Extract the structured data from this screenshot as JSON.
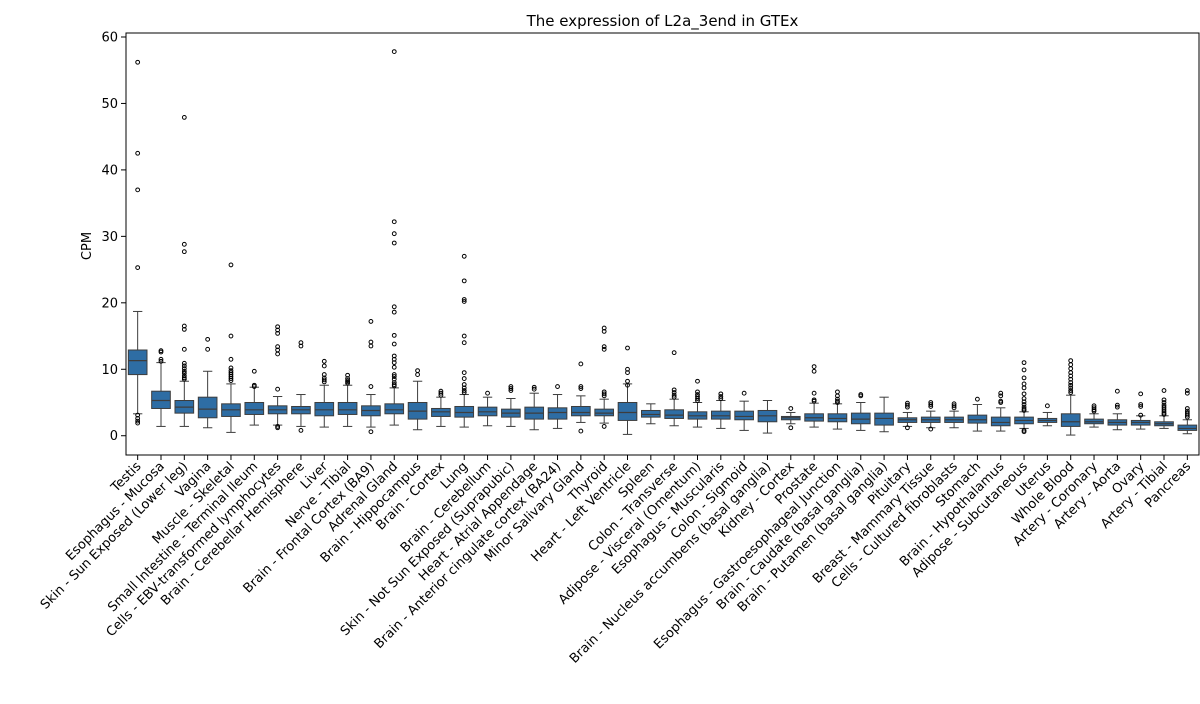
{
  "chart_data": {
    "type": "box",
    "title": "The expression of L2a_3end in GTEx",
    "xlabel": "",
    "ylabel": "CPM",
    "ylim": [
      -2.9,
      60.6
    ],
    "yticks": [
      0,
      10,
      20,
      30,
      40,
      50,
      60
    ],
    "grid": false,
    "legend": "none",
    "box_color": "#2e6da4",
    "categories": [
      "Testis",
      "Esophagus - Mucosa",
      "Skin - Sun Exposed (Lower leg)",
      "Vagina",
      "Muscle - Skeletal",
      "Small Intestine - Terminal Ileum",
      "Cells - EBV-transformed lymphocytes",
      "Brain - Cerebellar Hemisphere",
      "Liver",
      "Nerve - Tibial",
      "Brain - Frontal Cortex (BA9)",
      "Adrenal Gland",
      "Brain - Hippocampus",
      "Brain - Cortex",
      "Lung",
      "Brain - Cerebellum",
      "Skin - Not Sun Exposed (Suprapubic)",
      "Heart - Atrial Appendage",
      "Brain - Anterior cingulate cortex (BA24)",
      "Minor Salivary Gland",
      "Thyroid",
      "Heart - Left Ventricle",
      "Spleen",
      "Colon - Transverse",
      "Adipose - Visceral (Omentum)",
      "Esophagus - Muscularis",
      "Colon - Sigmoid",
      "Brain - Nucleus accumbens (basal ganglia)",
      "Kidney - Cortex",
      "Prostate",
      "Esophagus - Gastroesophageal Junction",
      "Brain - Caudate (basal ganglia)",
      "Brain - Putamen (basal ganglia)",
      "Pituitary",
      "Breast - Mammary Tissue",
      "Cells - Cultured fibroblasts",
      "Stomach",
      "Brain - Hypothalamus",
      "Adipose - Subcutaneous",
      "Uterus",
      "Whole Blood",
      "Artery - Coronary",
      "Artery - Aorta",
      "Ovary",
      "Artery - Tibial",
      "Pancreas"
    ],
    "boxes": [
      {
        "whislo": 3.3,
        "q1": 9.2,
        "med": 11.3,
        "q3": 12.9,
        "whishi": 18.7,
        "fliers": [
          56.2,
          42.5,
          37.0,
          25.3,
          3.1,
          2.6,
          2.2,
          1.9
        ]
      },
      {
        "whislo": 1.4,
        "q1": 4.1,
        "med": 5.3,
        "q3": 6.7,
        "whishi": 11.0,
        "fliers": [
          12.8,
          12.6,
          11.5,
          11.2
        ]
      },
      {
        "whislo": 1.4,
        "q1": 3.4,
        "med": 4.3,
        "q3": 5.3,
        "whishi": 8.2,
        "fliers": [
          47.9,
          28.8,
          27.7,
          16.5,
          16.0,
          13.0,
          10.9,
          10.5,
          10.1,
          9.7,
          9.4,
          9.0,
          8.7,
          8.5
        ]
      },
      {
        "whislo": 1.2,
        "q1": 2.7,
        "med": 4.0,
        "q3": 5.8,
        "whishi": 9.7,
        "fliers": [
          14.5,
          13.0
        ]
      },
      {
        "whislo": 0.5,
        "q1": 2.9,
        "med": 3.9,
        "q3": 4.8,
        "whishi": 7.8,
        "fliers": [
          25.7,
          15.0,
          11.5,
          10.2,
          9.8,
          9.5,
          9.2,
          8.9,
          8.6,
          8.3
        ]
      },
      {
        "whislo": 1.6,
        "q1": 3.2,
        "med": 3.9,
        "q3": 5.0,
        "whishi": 7.3,
        "fliers": [
          9.7,
          7.6,
          7.4
        ]
      },
      {
        "whislo": 1.6,
        "q1": 3.3,
        "med": 3.9,
        "q3": 4.5,
        "whishi": 5.9,
        "fliers": [
          16.4,
          15.9,
          15.4,
          13.4,
          12.9,
          12.3,
          7.0,
          1.4,
          1.2
        ]
      },
      {
        "whislo": 1.4,
        "q1": 3.3,
        "med": 3.9,
        "q3": 4.4,
        "whishi": 6.2,
        "fliers": [
          14.0,
          13.5,
          0.8
        ]
      },
      {
        "whislo": 1.3,
        "q1": 3.0,
        "med": 3.9,
        "q3": 5.0,
        "whishi": 7.6,
        "fliers": [
          11.2,
          10.5,
          9.2,
          8.7,
          8.4,
          8.1
        ]
      },
      {
        "whislo": 1.4,
        "q1": 3.2,
        "med": 3.9,
        "q3": 5.0,
        "whishi": 7.6,
        "fliers": [
          9.1,
          8.6,
          8.3,
          8.1,
          7.9
        ]
      },
      {
        "whislo": 1.3,
        "q1": 3.0,
        "med": 3.8,
        "q3": 4.5,
        "whishi": 6.2,
        "fliers": [
          17.2,
          14.1,
          13.5,
          7.4,
          0.6
        ]
      },
      {
        "whislo": 1.6,
        "q1": 3.3,
        "med": 3.9,
        "q3": 4.8,
        "whishi": 7.2,
        "fliers": [
          57.8,
          32.2,
          30.4,
          29.0,
          19.4,
          18.6,
          15.1,
          13.8,
          12.0,
          11.5,
          11.0,
          10.3,
          9.2,
          8.9,
          8.5,
          8.0,
          7.7,
          7.5
        ]
      },
      {
        "whislo": 0.9,
        "q1": 2.5,
        "med": 3.7,
        "q3": 5.0,
        "whishi": 8.2,
        "fliers": [
          9.8,
          9.2
        ]
      },
      {
        "whislo": 1.4,
        "q1": 2.9,
        "med": 3.6,
        "q3": 4.1,
        "whishi": 5.8,
        "fliers": [
          6.7,
          6.4,
          6.1
        ]
      },
      {
        "whislo": 1.3,
        "q1": 2.8,
        "med": 3.5,
        "q3": 4.4,
        "whishi": 6.2,
        "fliers": [
          27.0,
          23.3,
          20.5,
          20.2,
          15.0,
          14.0,
          9.5,
          8.6,
          7.7,
          7.2,
          6.8,
          6.5
        ]
      },
      {
        "whislo": 1.5,
        "q1": 3.0,
        "med": 3.6,
        "q3": 4.3,
        "whishi": 5.8,
        "fliers": [
          6.4
        ]
      },
      {
        "whislo": 1.4,
        "q1": 2.8,
        "med": 3.4,
        "q3": 4.0,
        "whishi": 5.6,
        "fliers": [
          7.4,
          7.1,
          6.8
        ]
      },
      {
        "whislo": 0.9,
        "q1": 2.5,
        "med": 3.4,
        "q3": 4.3,
        "whishi": 6.4,
        "fliers": [
          7.3,
          7.0
        ]
      },
      {
        "whislo": 1.1,
        "q1": 2.5,
        "med": 3.5,
        "q3": 4.2,
        "whishi": 6.2,
        "fliers": [
          7.4
        ]
      },
      {
        "whislo": 2.0,
        "q1": 3.0,
        "med": 3.5,
        "q3": 4.4,
        "whishi": 6.0,
        "fliers": [
          10.8,
          7.4,
          7.1,
          0.7
        ]
      },
      {
        "whislo": 1.9,
        "q1": 3.0,
        "med": 3.4,
        "q3": 4.0,
        "whishi": 5.5,
        "fliers": [
          16.2,
          15.7,
          13.4,
          13.0,
          6.6,
          6.3,
          6.0,
          1.4
        ]
      },
      {
        "whislo": 0.2,
        "q1": 2.3,
        "med": 3.5,
        "q3": 5.0,
        "whishi": 7.8,
        "fliers": [
          13.2,
          10.0,
          9.5,
          8.2,
          7.6
        ]
      },
      {
        "whislo": 1.8,
        "q1": 2.8,
        "med": 3.2,
        "q3": 3.8,
        "whishi": 4.8,
        "fliers": []
      },
      {
        "whislo": 1.5,
        "q1": 2.6,
        "med": 3.1,
        "q3": 3.9,
        "whishi": 5.5,
        "fliers": [
          12.5,
          6.9,
          6.5,
          6.1,
          5.8
        ]
      },
      {
        "whislo": 1.3,
        "q1": 2.5,
        "med": 3.0,
        "q3": 3.6,
        "whishi": 5.0,
        "fliers": [
          8.2,
          6.6,
          6.2,
          5.9,
          5.6,
          5.3
        ]
      },
      {
        "whislo": 1.1,
        "q1": 2.5,
        "med": 3.0,
        "q3": 3.7,
        "whishi": 5.3,
        "fliers": [
          6.3,
          5.9,
          5.6
        ]
      },
      {
        "whislo": 0.8,
        "q1": 2.4,
        "med": 2.9,
        "q3": 3.7,
        "whishi": 5.2,
        "fliers": [
          6.4
        ]
      },
      {
        "whislo": 0.4,
        "q1": 2.1,
        "med": 3.0,
        "q3": 3.8,
        "whishi": 5.3,
        "fliers": []
      },
      {
        "whislo": 1.8,
        "q1": 2.4,
        "med": 2.7,
        "q3": 2.9,
        "whishi": 3.5,
        "fliers": [
          4.1,
          1.2
        ]
      },
      {
        "whislo": 1.3,
        "q1": 2.2,
        "med": 2.7,
        "q3": 3.3,
        "whishi": 4.9,
        "fliers": [
          10.4,
          9.7,
          6.4,
          5.4,
          5.2
        ]
      },
      {
        "whislo": 1.0,
        "q1": 2.1,
        "med": 2.6,
        "q3": 3.3,
        "whishi": 4.8,
        "fliers": [
          6.6,
          6.0,
          5.5,
          5.2,
          5.0
        ]
      },
      {
        "whislo": 0.8,
        "q1": 1.8,
        "med": 2.5,
        "q3": 3.4,
        "whishi": 5.0,
        "fliers": [
          6.2,
          6.0
        ]
      },
      {
        "whislo": 0.6,
        "q1": 1.6,
        "med": 2.6,
        "q3": 3.4,
        "whishi": 5.8,
        "fliers": []
      },
      {
        "whislo": 1.4,
        "q1": 2.0,
        "med": 2.4,
        "q3": 2.7,
        "whishi": 3.5,
        "fliers": [
          4.9,
          4.6,
          4.3,
          1.2
        ]
      },
      {
        "whislo": 1.2,
        "q1": 2.0,
        "med": 2.4,
        "q3": 2.8,
        "whishi": 3.7,
        "fliers": [
          5.0,
          4.7,
          4.4,
          1.0
        ]
      },
      {
        "whislo": 1.2,
        "q1": 2.0,
        "med": 2.4,
        "q3": 2.8,
        "whishi": 3.7,
        "fliers": [
          4.8,
          4.5,
          4.2
        ]
      },
      {
        "whislo": 0.7,
        "q1": 1.9,
        "med": 2.4,
        "q3": 3.1,
        "whishi": 4.7,
        "fliers": [
          5.5
        ]
      },
      {
        "whislo": 0.7,
        "q1": 1.5,
        "med": 2.0,
        "q3": 2.8,
        "whishi": 4.2,
        "fliers": [
          6.4,
          6.0,
          5.2,
          5.0
        ]
      },
      {
        "whislo": 1.1,
        "q1": 1.8,
        "med": 2.3,
        "q3": 2.8,
        "whishi": 3.6,
        "fliers": [
          11.0,
          9.9,
          8.7,
          7.8,
          7.2,
          6.3,
          5.6,
          5.1,
          4.7,
          4.3,
          4.0,
          3.8,
          0.8,
          0.6
        ]
      },
      {
        "whislo": 1.5,
        "q1": 2.0,
        "med": 2.3,
        "q3": 2.6,
        "whishi": 3.5,
        "fliers": [
          4.5
        ]
      },
      {
        "whislo": 0.1,
        "q1": 1.4,
        "med": 2.1,
        "q3": 3.3,
        "whishi": 6.1,
        "fliers": [
          11.3,
          10.7,
          10.1,
          9.5,
          9.0,
          8.5,
          8.0,
          7.6,
          7.2,
          6.8,
          6.5
        ]
      },
      {
        "whislo": 1.3,
        "q1": 1.8,
        "med": 2.1,
        "q3": 2.5,
        "whishi": 3.3,
        "fliers": [
          4.5,
          4.2,
          3.9,
          3.7
        ]
      },
      {
        "whislo": 0.9,
        "q1": 1.6,
        "med": 2.0,
        "q3": 2.4,
        "whishi": 3.3,
        "fliers": [
          6.7,
          4.6,
          4.3
        ]
      },
      {
        "whislo": 1.0,
        "q1": 1.6,
        "med": 2.0,
        "q3": 2.3,
        "whishi": 3.0,
        "fliers": [
          6.3,
          4.7,
          4.4,
          3.1
        ]
      },
      {
        "whislo": 1.1,
        "q1": 1.5,
        "med": 1.8,
        "q3": 2.1,
        "whishi": 3.0,
        "fliers": [
          6.8,
          5.4,
          5.0,
          4.6,
          4.3,
          4.0,
          3.7,
          3.4,
          3.2
        ]
      },
      {
        "whislo": 0.3,
        "q1": 0.8,
        "med": 1.1,
        "q3": 1.6,
        "whishi": 2.4,
        "fliers": [
          6.8,
          6.4,
          4.1,
          3.7,
          3.4,
          3.1,
          2.8
        ]
      }
    ]
  }
}
